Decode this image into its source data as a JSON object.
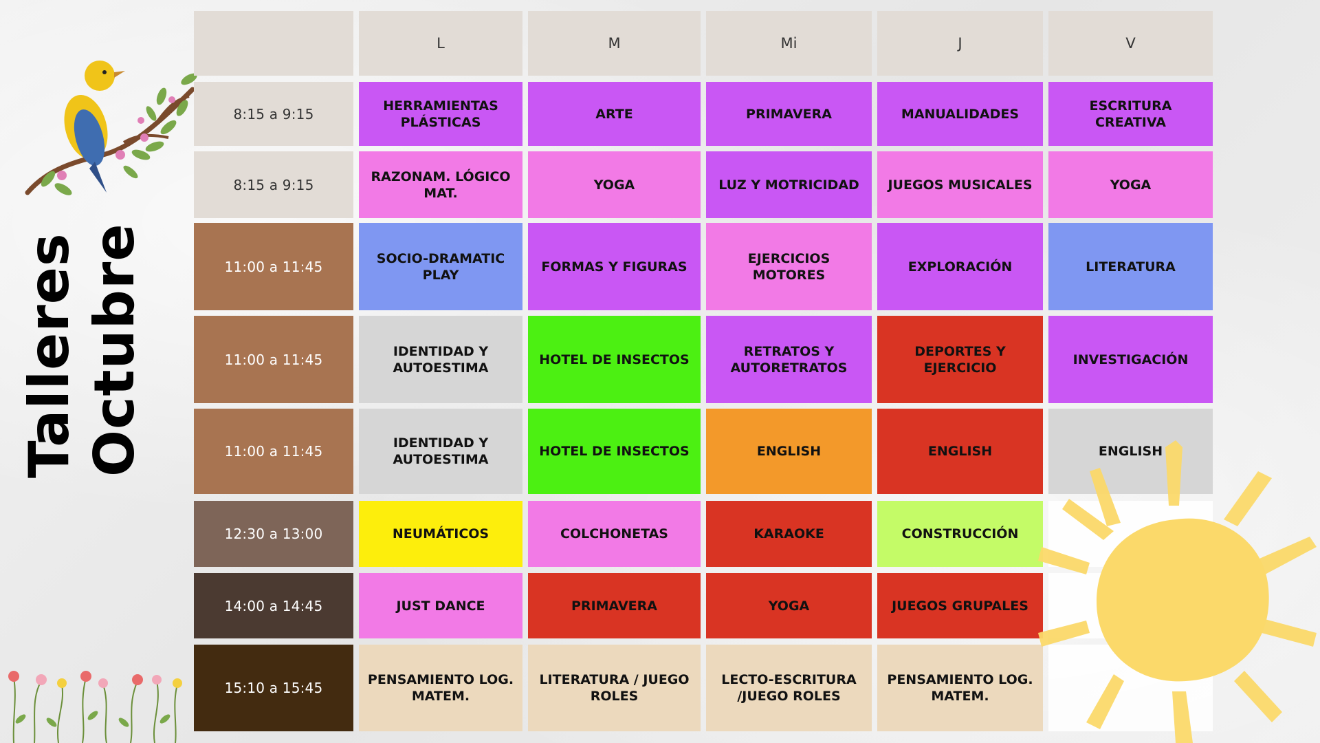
{
  "title": {
    "line1": "Talleres",
    "line2": "Octubre"
  },
  "days": [
    "L",
    "M",
    "Mi",
    "J",
    "V"
  ],
  "rows": [
    {
      "time": "8:15 a 9:15",
      "time_bg": "#e2dcd6",
      "time_fg": "#333333",
      "cells": [
        {
          "text": "HERRAMIENTAS PLÁSTICAS",
          "bg": "#c957f4"
        },
        {
          "text": "ARTE",
          "bg": "#c957f4"
        },
        {
          "text": "PRIMAVERA",
          "bg": "#c957f4"
        },
        {
          "text": "MANUALIDADES",
          "bg": "#c957f4"
        },
        {
          "text": "ESCRITURA CREATIVA",
          "bg": "#c957f4"
        }
      ]
    },
    {
      "time": "8:15 a 9:15",
      "time_bg": "#e2dcd6",
      "time_fg": "#333333",
      "cells": [
        {
          "text": "RAZONAM. LÓGICO MAT.",
          "bg": "#f27ae6"
        },
        {
          "text": "YOGA",
          "bg": "#f27ae6"
        },
        {
          "text": "LUZ Y MOTRICIDAD",
          "bg": "#c957f4"
        },
        {
          "text": "JUEGOS MUSICALES",
          "bg": "#f27ae6"
        },
        {
          "text": "YOGA",
          "bg": "#f27ae6"
        }
      ]
    },
    {
      "time": "11:00 a 11:45",
      "time_bg": "#a87451",
      "time_fg": "#ffffff",
      "cells": [
        {
          "text": "SOCIO-DRAMATIC PLAY",
          "bg": "#7f97f2"
        },
        {
          "text": "FORMAS Y FIGURAS",
          "bg": "#c957f4"
        },
        {
          "text": "EJERCICIOS MOTORES",
          "bg": "#f27ae6"
        },
        {
          "text": "EXPLORACIÓN",
          "bg": "#c957f4"
        },
        {
          "text": "LITERATURA",
          "bg": "#7f97f2"
        }
      ]
    },
    {
      "time": "11:00 a 11:45",
      "time_bg": "#a87451",
      "time_fg": "#ffffff",
      "cells": [
        {
          "text": "IDENTIDAD Y AUTOESTIMA",
          "bg": "#d6d6d6"
        },
        {
          "text": "HOTEL DE INSECTOS",
          "bg": "#4cf012"
        },
        {
          "text": "RETRATOS Y AUTORETRATOS",
          "bg": "#c957f4"
        },
        {
          "text": "DEPORTES Y EJERCICIO",
          "bg": "#d93423"
        },
        {
          "text": "INVESTIGACIÓN",
          "bg": "#c957f4"
        }
      ]
    },
    {
      "time": "11:00 a 11:45",
      "time_bg": "#a87451",
      "time_fg": "#ffffff",
      "cells": [
        {
          "text": "IDENTIDAD Y AUTOESTIMA",
          "bg": "#d6d6d6"
        },
        {
          "text": "HOTEL DE INSECTOS",
          "bg": "#4cf012"
        },
        {
          "text": "ENGLISH",
          "bg": "#f3992a"
        },
        {
          "text": "ENGLISH",
          "bg": "#d93423"
        },
        {
          "text": "ENGLISH",
          "bg": "#d6d6d6"
        }
      ]
    },
    {
      "time": "12:30 a 13:00",
      "time_bg": "#7e6558",
      "time_fg": "#ffffff",
      "cells": [
        {
          "text": "NEUMÁTICOS",
          "bg": "#fdee0c"
        },
        {
          "text": "COLCHONETAS",
          "bg": "#f27ae6"
        },
        {
          "text": "KARAOKE",
          "bg": "#d93423"
        },
        {
          "text": "CONSTRUCCIÓN",
          "bg": "#c4fb67"
        },
        {
          "text": "",
          "bg": ""
        }
      ]
    },
    {
      "time": "14:00 a 14:45",
      "time_bg": "#4b3a31",
      "time_fg": "#ffffff",
      "cells": [
        {
          "text": "JUST DANCE",
          "bg": "#f27ae6"
        },
        {
          "text": "PRIMAVERA",
          "bg": "#d93423"
        },
        {
          "text": "YOGA",
          "bg": "#d93423"
        },
        {
          "text": "JUEGOS GRUPALES",
          "bg": "#d93423"
        },
        {
          "text": "",
          "bg": ""
        }
      ]
    },
    {
      "time": "15:10 a 15:45",
      "time_bg": "#432b10",
      "time_fg": "#ffffff",
      "cells": [
        {
          "text": "PENSAMIENTO LOG. MATEM.",
          "bg": "#ecd9bd"
        },
        {
          "text": "LITERATURA / JUEGO ROLES",
          "bg": "#ecd9bd"
        },
        {
          "text": "LECTO-ESCRITURA /JUEGO ROLES",
          "bg": "#ecd9bd"
        },
        {
          "text": "PENSAMIENTO LOG. MATEM.",
          "bg": "#ecd9bd"
        },
        {
          "text": "",
          "bg": ""
        }
      ]
    }
  ],
  "colors": {
    "header_bg": "#e2dcd6",
    "sun": "#fbd96a",
    "leaf": "#7aa84a",
    "bird_body": "#f0c419",
    "bird_wing": "#3f6db0"
  },
  "icons": {
    "bird": "bird-on-branch-illustration",
    "flowers": "wildflowers-illustration",
    "sun": "sun-illustration"
  }
}
